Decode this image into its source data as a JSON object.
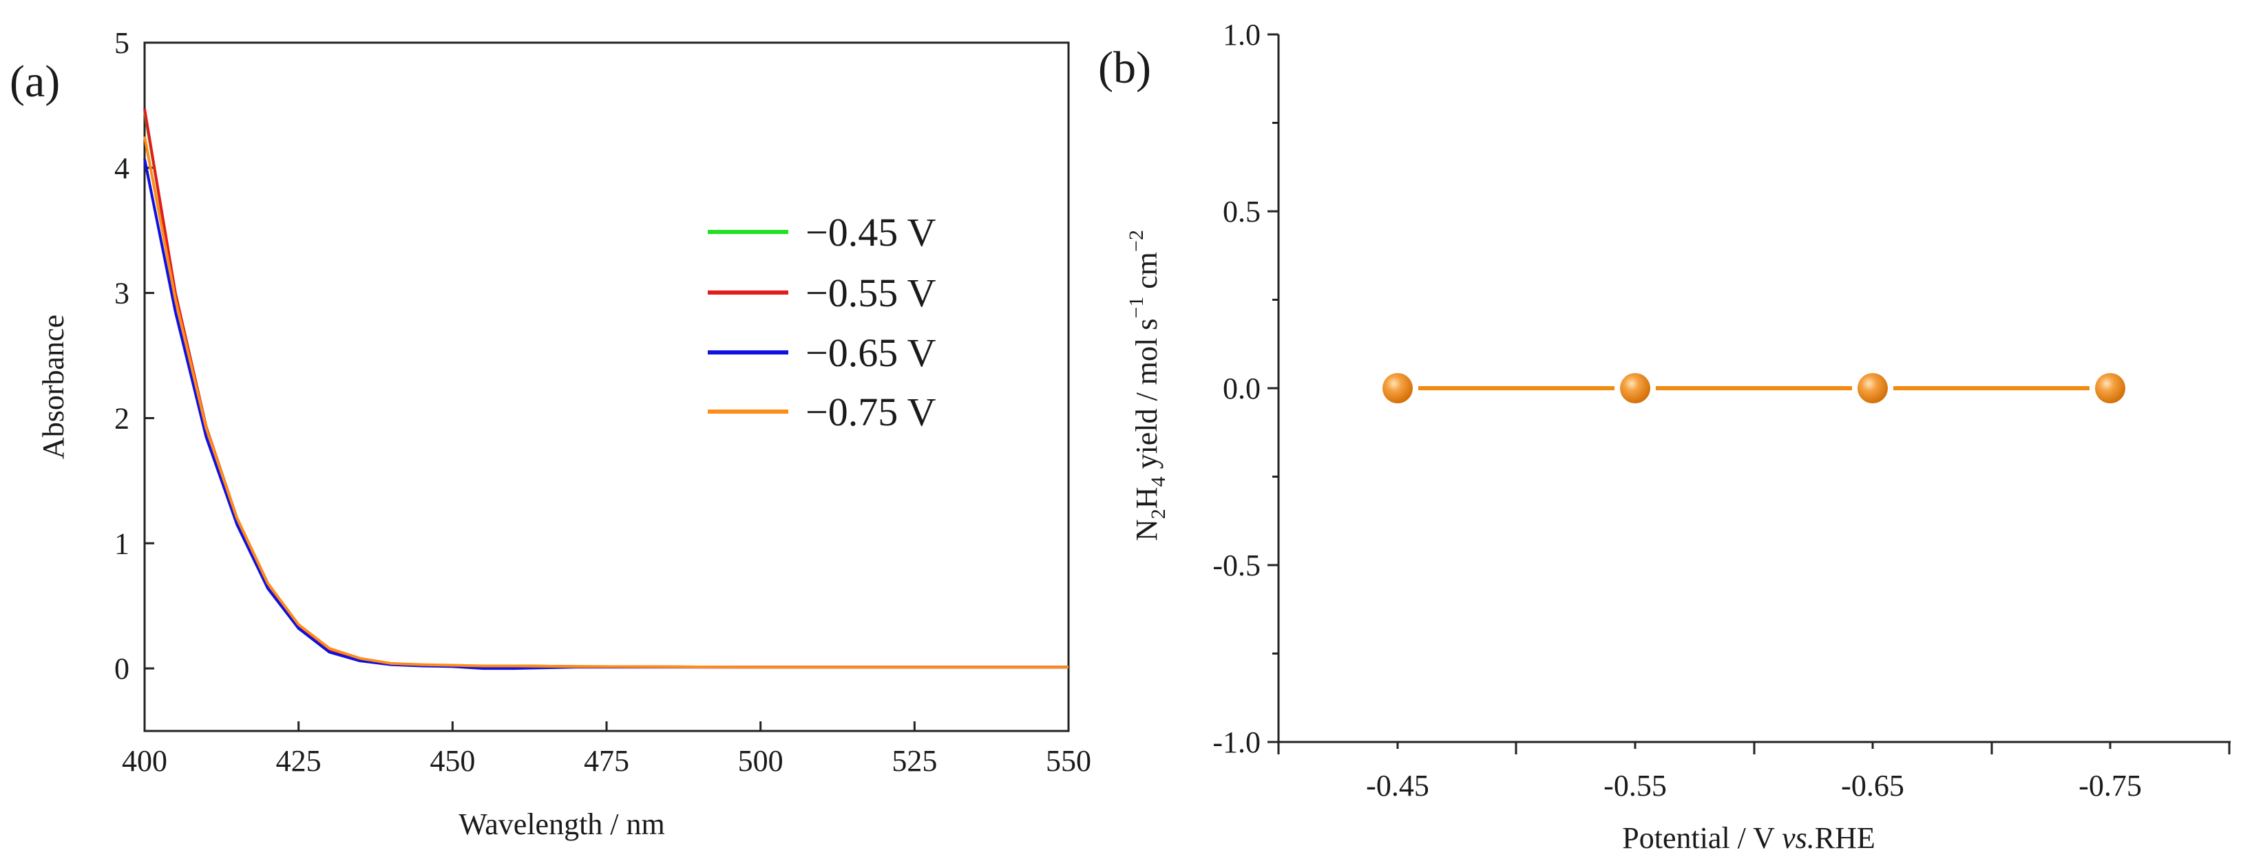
{
  "chart_data": [
    {
      "type": "line",
      "panel_label": "(a)",
      "xlabel": "Wavelength / nm",
      "ylabel": "Absorbance",
      "xlim": [
        400,
        550
      ],
      "ylim": [
        -0.5,
        5
      ],
      "xticks": [
        400,
        425,
        450,
        475,
        500,
        525,
        550
      ],
      "yticks": [
        0,
        1,
        2,
        3,
        4,
        5
      ],
      "legend_position": "center-right",
      "series": [
        {
          "name": "−0.45 V",
          "color": "#22e022",
          "x": [
            400,
            405,
            410,
            415,
            420,
            425,
            430,
            435,
            440,
            445,
            450,
            455,
            460,
            470,
            500,
            550
          ],
          "y": [
            4.45,
            3.0,
            1.93,
            1.2,
            0.68,
            0.34,
            0.15,
            0.07,
            0.035,
            0.025,
            0.02,
            0.02,
            0.02,
            0.015,
            0.01,
            0.01
          ]
        },
        {
          "name": "−0.55 V",
          "color": "#e41a1c",
          "x": [
            400,
            405,
            410,
            415,
            420,
            425,
            430,
            435,
            440,
            445,
            450,
            455,
            460,
            470,
            500,
            550
          ],
          "y": [
            4.47,
            3.0,
            1.93,
            1.2,
            0.68,
            0.34,
            0.15,
            0.07,
            0.035,
            0.025,
            0.02,
            0.02,
            0.02,
            0.015,
            0.01,
            0.01
          ]
        },
        {
          "name": "−0.65 V",
          "color": "#1010e0",
          "x": [
            400,
            405,
            410,
            415,
            420,
            425,
            430,
            435,
            440,
            445,
            450,
            455,
            460,
            470,
            500,
            550
          ],
          "y": [
            4.07,
            2.85,
            1.85,
            1.15,
            0.64,
            0.32,
            0.13,
            0.06,
            0.03,
            0.02,
            0.015,
            0.0,
            0.0,
            0.01,
            0.01,
            0.01
          ]
        },
        {
          "name": "−0.75 V",
          "color": "#ff8c1a",
          "x": [
            400,
            405,
            410,
            415,
            420,
            425,
            430,
            435,
            440,
            445,
            450,
            455,
            460,
            470,
            500,
            550
          ],
          "y": [
            4.25,
            2.95,
            1.92,
            1.2,
            0.68,
            0.35,
            0.16,
            0.08,
            0.04,
            0.03,
            0.025,
            0.02,
            0.02,
            0.015,
            0.01,
            0.01
          ]
        }
      ]
    },
    {
      "type": "line",
      "panel_label": "(b)",
      "xlabel_main": "Potential / V ",
      "xlabel_italic": "vs.",
      "xlabel_tail": "RHE",
      "ylabel_parts": {
        "n": "N",
        "sub1": "2",
        "h": "H",
        "sub2": "4",
        "mid": " yield /  mol s",
        "sup1": "−1",
        "cm": " cm",
        "sup2": "−2"
      },
      "categories": [
        "-0.45",
        "-0.55",
        "-0.65",
        "-0.75"
      ],
      "ylim": [
        -1.0,
        1.0
      ],
      "yticks": [
        "-1.0",
        "-0.5",
        "0.0",
        "0.5",
        "1.0"
      ],
      "series": [
        {
          "name": "N2H4 yield",
          "color": "#f08a10",
          "values": [
            0.0,
            0.0,
            0.0,
            0.0
          ]
        }
      ]
    }
  ]
}
